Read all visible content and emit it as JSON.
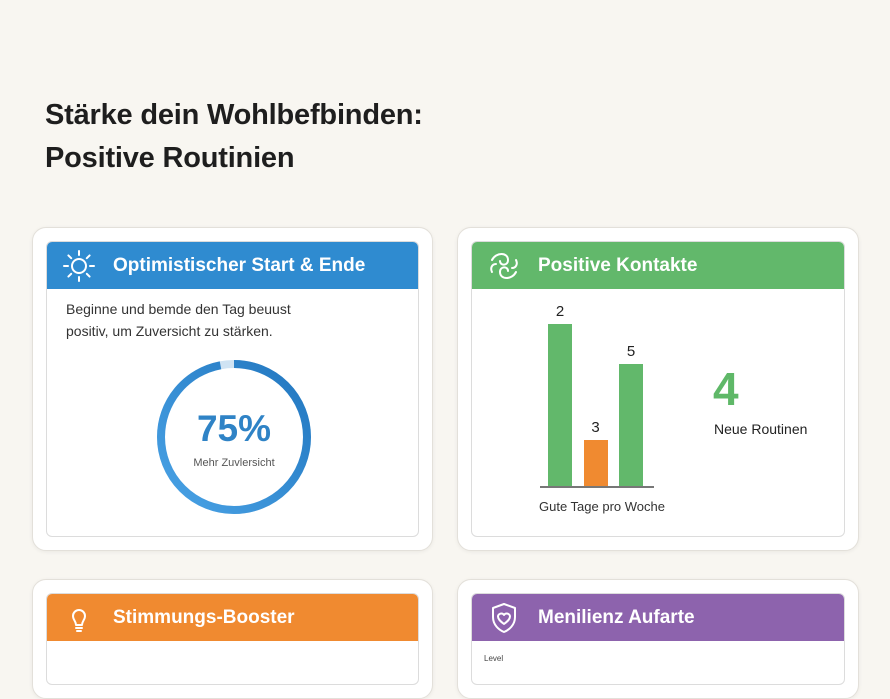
{
  "page": {
    "title_line1": "Stärke dein Wohlbefbinden:",
    "title_line2": "Positive Routinien"
  },
  "cards": {
    "optimism": {
      "title": "Optimistischer Start & Ende",
      "icon": "sun-icon",
      "description_line1": "Beginne und bemde den Tag beuust",
      "description_line2": "positiv, um Zuversicht zu stärken.",
      "percent_label": "75%",
      "percent_value": 0.75,
      "sub_label": "Mehr Zuvlersicht",
      "color": "#2f8bd0"
    },
    "contacts": {
      "title": "Positive Kontakte",
      "icon": "connection-icon",
      "big_number": "4",
      "big_number_label": "Neue Routinen",
      "color": "#62b86b"
    },
    "booster": {
      "title": "Stimmungs-Booster",
      "icon": "lightbulb-icon",
      "color": "#f08a30"
    },
    "resilience": {
      "title": "Menilienz Aufarte",
      "icon": "shield-heart-icon",
      "level_label": "Level",
      "color": "#8d63ad"
    }
  },
  "chart_data": {
    "type": "bar",
    "categories": [
      "",
      "",
      ""
    ],
    "values": [
      2,
      3,
      5
    ],
    "data_labels": [
      "2",
      "3",
      "5"
    ],
    "bar_colors": [
      "#62b86b",
      "#f08a30",
      "#62b86b"
    ],
    "xlabel": "Gute Tage pro Woche",
    "ylabel": ""
  }
}
